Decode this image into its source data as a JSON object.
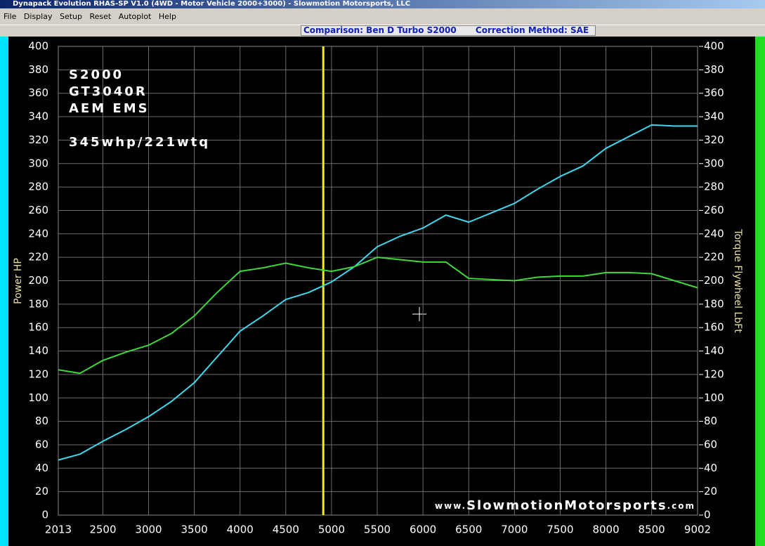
{
  "window": {
    "title": "Dynapack Evolution RHAS-SP V1.0  (4WD - Motor Vehicle 2000+3000) - Slowmotion Motorsports, LLC",
    "menu": [
      "File",
      "Display",
      "Setup",
      "Reset",
      "Autoplot",
      "Help"
    ],
    "status": [
      "Comparison: Ben D Turbo S2000",
      "Correction Method: SAE"
    ]
  },
  "chart_data": {
    "type": "line",
    "y_label": "Power HP",
    "y2_label": "Torque Flywheel LbFt",
    "annotations": [
      "S2000",
      "GT3040R",
      "AEM EMS",
      "345whp/221wtq"
    ],
    "watermark": [
      "www.",
      "SlowmotionMotorsports",
      ".com"
    ],
    "x": [
      2013,
      2250,
      2500,
      2750,
      3000,
      3250,
      3500,
      3750,
      4000,
      4250,
      4500,
      4750,
      5000,
      5250,
      5500,
      5750,
      6000,
      6250,
      6500,
      6750,
      7000,
      7250,
      7500,
      7750,
      8000,
      8250,
      8500,
      8750,
      9002
    ],
    "series": [
      {
        "name": "Power HP",
        "color": "#3fd8f0",
        "values": [
          47,
          52,
          63,
          73,
          84,
          97,
          113,
          135,
          157,
          170,
          184,
          190,
          199,
          212,
          229,
          238,
          245,
          256,
          250,
          258,
          266,
          278,
          289,
          298,
          313,
          323,
          333,
          332,
          332
        ]
      },
      {
        "name": "Torque Flywheel LbFt",
        "color": "#3ed83a",
        "axis": "y2",
        "values": [
          124,
          121,
          132,
          139,
          145,
          155,
          170,
          190,
          208,
          211,
          215,
          211,
          208,
          212,
          220,
          218,
          216,
          216,
          202,
          201,
          200,
          203,
          204,
          204,
          207,
          207,
          206,
          200,
          194
        ]
      }
    ],
    "cursor_x": 4910,
    "xlim": [
      2013,
      9002
    ],
    "xticks": [
      2013,
      2500,
      3000,
      3500,
      4000,
      4500,
      5000,
      5500,
      6000,
      6500,
      7000,
      7500,
      8000,
      8500,
      9002
    ],
    "ylim": [
      0,
      400
    ],
    "yticks": [
      0,
      20,
      40,
      60,
      80,
      100,
      120,
      140,
      160,
      180,
      200,
      220,
      240,
      260,
      280,
      300,
      320,
      340,
      360,
      380,
      400
    ],
    "y2lim": [
      0,
      400
    ],
    "y2ticks": [
      0,
      20,
      40,
      60,
      80,
      100,
      120,
      140,
      160,
      180,
      200,
      220,
      240,
      260,
      280,
      300,
      320,
      340,
      360,
      380,
      400
    ],
    "grid": true
  }
}
